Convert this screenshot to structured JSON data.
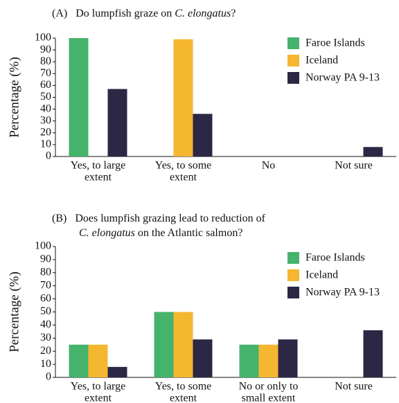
{
  "chart_data": [
    {
      "type": "bar",
      "title": [
        "(A)",
        "Do lumpfish graze on ",
        "C. elongatus",
        "?"
      ],
      "ylabel": "Percentage (%)",
      "categories": [
        [
          "Yes, to large",
          "extent"
        ],
        [
          "Yes, to some",
          "extent"
        ],
        [
          "No"
        ],
        [
          "Not sure"
        ]
      ],
      "series": [
        {
          "name": "Faroe Islands",
          "color": "#45b36b",
          "values": [
            100,
            0,
            0,
            0
          ]
        },
        {
          "name": "Iceland",
          "color": "#f5b630",
          "values": [
            0,
            99,
            0,
            0
          ]
        },
        {
          "name": "Norway PA 9-13",
          "color": "#2b2745",
          "values": [
            57,
            36,
            0,
            8
          ]
        }
      ],
      "ylim": [
        0,
        100
      ],
      "yticks": [
        0,
        10,
        20,
        30,
        40,
        50,
        60,
        70,
        80,
        90,
        100
      ],
      "grid": false,
      "legend": "upper right"
    },
    {
      "type": "bar",
      "title": [
        [
          "(B)",
          "Does lumpfish grazing lead to reduction of"
        ],
        [
          "C. elongatus",
          " on the Atlantic salmon?"
        ]
      ],
      "ylabel": "Percentage (%)",
      "categories": [
        [
          "Yes, to large",
          "extent"
        ],
        [
          "Yes, to some",
          "extent"
        ],
        [
          "No or only to",
          "small extent"
        ],
        [
          "Not sure"
        ]
      ],
      "series": [
        {
          "name": "Faroe Islands",
          "color": "#45b36b",
          "values": [
            25,
            50,
            25,
            0
          ]
        },
        {
          "name": "Iceland",
          "color": "#f5b630",
          "values": [
            25,
            50,
            25,
            0
          ]
        },
        {
          "name": "Norway PA 9-13",
          "color": "#2b2745",
          "values": [
            8,
            29,
            29,
            36
          ]
        }
      ],
      "ylim": [
        0,
        100
      ],
      "yticks": [
        0,
        10,
        20,
        30,
        40,
        50,
        60,
        70,
        80,
        90,
        100
      ],
      "grid": false,
      "legend": "upper right"
    }
  ]
}
